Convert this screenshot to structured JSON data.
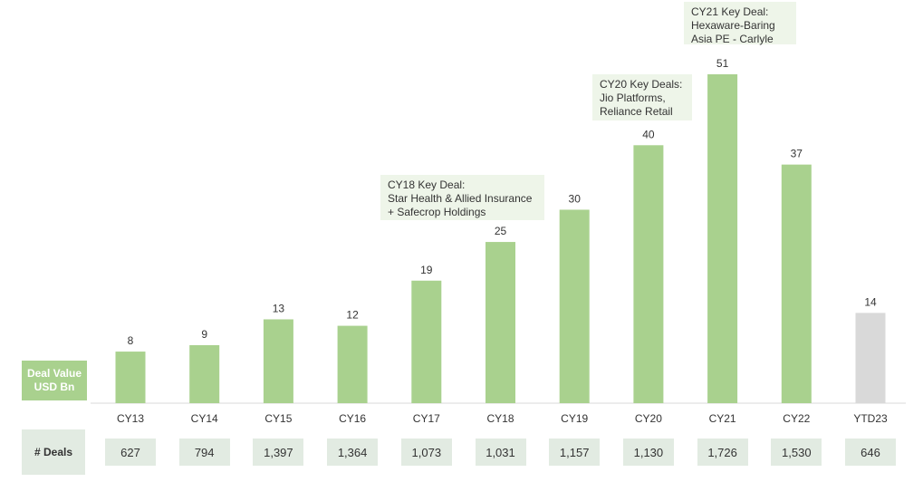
{
  "chart_data": {
    "type": "bar",
    "categories": [
      "CY13",
      "CY14",
      "CY15",
      "CY16",
      "CY17",
      "CY18",
      "CY19",
      "CY20",
      "CY21",
      "CY22",
      "YTD23"
    ],
    "values": [
      8,
      9,
      13,
      12,
      19,
      25,
      30,
      40,
      51,
      37,
      14
    ],
    "value_labels": [
      "8",
      "9",
      "13",
      "12",
      "19",
      "25",
      "30",
      "40",
      "51",
      "37",
      "14"
    ],
    "series_name": "Deal Value USD Bn",
    "deals": [
      "627",
      "794",
      "1,397",
      "1,364",
      "1,073",
      "1,031",
      "1,157",
      "1,130",
      "1,726",
      "1,530",
      "646"
    ],
    "xlabel": "",
    "ylabel": "",
    "ylim": [
      0,
      51
    ],
    "grid": false,
    "colors": {
      "bar": "#a9d18e",
      "ytd_bar": "#d9d9d9",
      "callout_bg": "#eef5e9",
      "label_bg": "#a9d18e",
      "deals_bg": "#e2ebe2"
    }
  },
  "legend": {
    "line1": "Deal Value",
    "line2": "USD Bn"
  },
  "deals_row_label": "# Deals",
  "callouts": [
    {
      "lines": [
        "CY18 Key Deal:",
        "Star Health & Allied Insurance",
        "+ Safecrop Holdings"
      ]
    },
    {
      "lines": [
        "CY20 Key Deals:",
        "Jio Platforms,",
        "Reliance Retail"
      ]
    },
    {
      "lines": [
        "CY21 Key Deal:",
        "Hexaware-Baring",
        "Asia PE - Carlyle"
      ]
    }
  ]
}
